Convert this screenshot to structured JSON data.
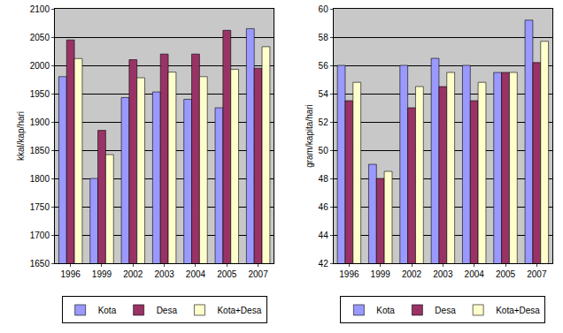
{
  "chart_data": [
    {
      "type": "bar",
      "y_label": "kkal/kap/hari",
      "categories": [
        "1996",
        "1999",
        "2002",
        "2003",
        "2004",
        "2005",
        "2007"
      ],
      "series": [
        {
          "name": "Kota",
          "color": "#9999ff",
          "values": [
            1980,
            1800,
            1943,
            1953,
            1940,
            1925,
            2065
          ]
        },
        {
          "name": "Desa",
          "color": "#993366",
          "values": [
            2045,
            1885,
            2010,
            2020,
            2020,
            2062,
            1995
          ]
        },
        {
          "name": "Kota+Desa",
          "color": "#ffffcc",
          "values": [
            2012,
            1842,
            1978,
            1988,
            1980,
            1993,
            2033
          ]
        }
      ],
      "ylim": [
        1650,
        2100
      ],
      "yticks": [
        1650,
        1700,
        1750,
        1800,
        1850,
        1900,
        1950,
        2000,
        2050,
        2100
      ],
      "grid": true,
      "legend": "bottom"
    },
    {
      "type": "bar",
      "y_label": "gram/kapita/hari",
      "categories": [
        "1996",
        "1999",
        "2002",
        "2003",
        "2004",
        "2005",
        "2007"
      ],
      "series": [
        {
          "name": "Kota",
          "color": "#9999ff",
          "values": [
            56,
            49,
            56,
            56.5,
            56,
            55.5,
            59.2
          ]
        },
        {
          "name": "Desa",
          "color": "#993366",
          "values": [
            53.5,
            48,
            53,
            54.5,
            53.5,
            55.5,
            56.2
          ]
        },
        {
          "name": "Kota+Desa",
          "color": "#ffffcc",
          "values": [
            54.8,
            48.5,
            54.5,
            55.5,
            54.8,
            55.5,
            57.7
          ]
        }
      ],
      "ylim": [
        42,
        60
      ],
      "yticks": [
        42,
        44,
        46,
        48,
        50,
        52,
        54,
        56,
        58,
        60
      ],
      "grid": true,
      "legend": "bottom"
    }
  ]
}
